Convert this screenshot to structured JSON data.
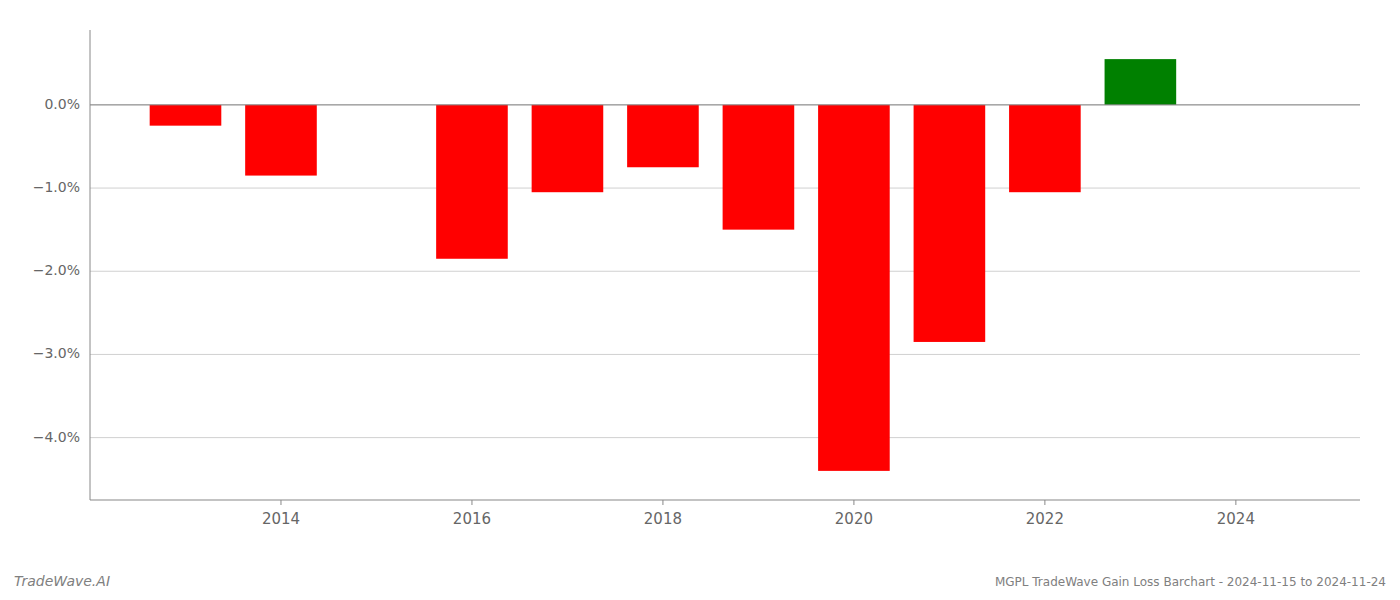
{
  "chart_data": {
    "type": "bar",
    "x": [
      2013,
      2014,
      2016,
      2017,
      2018,
      2019,
      2020,
      2021,
      2022,
      2023
    ],
    "values": [
      -0.25,
      -0.85,
      -1.85,
      -1.05,
      -0.75,
      -1.5,
      -4.4,
      -2.85,
      -1.05,
      0.55
    ],
    "colors": [
      "#ff0000",
      "#ff0000",
      "#ff0000",
      "#ff0000",
      "#ff0000",
      "#ff0000",
      "#ff0000",
      "#ff0000",
      "#ff0000",
      "#008000"
    ],
    "xlim": [
      2012.0,
      2025.3
    ],
    "xticks": [
      2014,
      2016,
      2018,
      2020,
      2022,
      2024
    ],
    "ylim": [
      -4.75,
      0.9
    ],
    "yticks": [
      {
        "value": 0.0,
        "label": "0.0%"
      },
      {
        "value": -1.0,
        "label": "−1.0%"
      },
      {
        "value": -2.0,
        "label": "−2.0%"
      },
      {
        "value": -3.0,
        "label": "−3.0%"
      },
      {
        "value": -4.0,
        "label": "−4.0%"
      }
    ],
    "grid": true,
    "annotations": [
      "TradeWave.AI",
      "MGPL TradeWave Gain Loss Barchart - 2024-11-15 to 2024-11-24"
    ]
  }
}
